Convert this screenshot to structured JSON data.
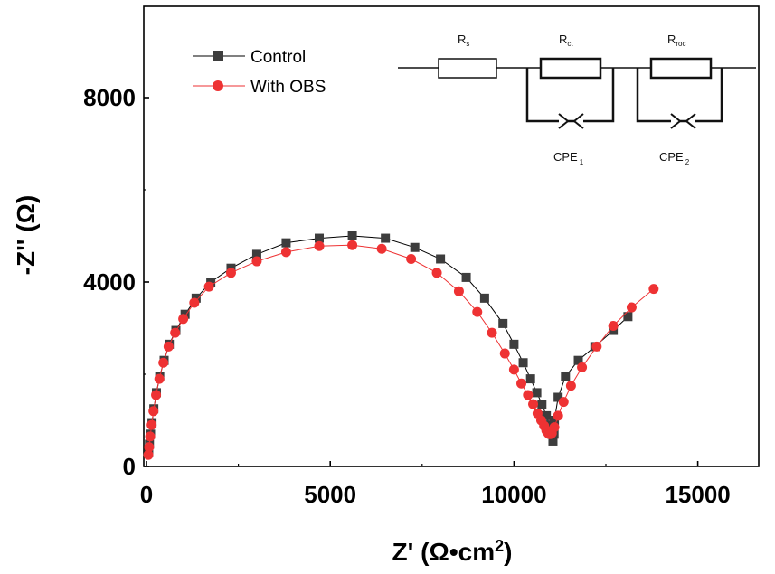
{
  "chart_data": {
    "type": "scatter",
    "title": "",
    "xlabel": "Z' (Ω•cm",
    "xlabel_sup": "2",
    "xlabel_end": ")",
    "ylabel": "-Z'' (Ω)",
    "xlim": [
      0,
      16800
    ],
    "ylim": [
      0,
      9800
    ],
    "xticks": [
      0,
      5000,
      10000,
      15000
    ],
    "yticks": [
      0,
      4000,
      8000
    ],
    "xtick_labels": [
      "0",
      "5000",
      "10000",
      "15000"
    ],
    "ytick_labels": [
      "0",
      "4000",
      "8000"
    ],
    "legend_position": "top-left",
    "series": [
      {
        "name": "Control",
        "color": "#3d3d3d",
        "line_color": "#000000",
        "marker": "square",
        "x": [
          60,
          80,
          110,
          150,
          200,
          270,
          360,
          480,
          620,
          800,
          1050,
          1350,
          1750,
          2300,
          3000,
          3800,
          4700,
          5600,
          6500,
          7300,
          8000,
          8700,
          9200,
          9700,
          10000,
          10250,
          10450,
          10620,
          10760,
          10880,
          10960,
          11020,
          11060,
          11090,
          11100,
          11200,
          11400,
          11750,
          12200,
          12700,
          13100
        ],
        "y": [
          300,
          480,
          700,
          950,
          1250,
          1600,
          1950,
          2300,
          2650,
          2950,
          3300,
          3650,
          4000,
          4300,
          4600,
          4850,
          4950,
          5000,
          4950,
          4750,
          4500,
          4100,
          3650,
          3100,
          2650,
          2250,
          1900,
          1600,
          1350,
          1100,
          900,
          700,
          550,
          700,
          1000,
          1500,
          1950,
          2300,
          2600,
          2950,
          3250
        ]
      },
      {
        "name": "With OBS",
        "color": "#ee3233",
        "line_color": "#ee3233",
        "marker": "circle",
        "x": [
          50,
          70,
          100,
          140,
          190,
          260,
          350,
          460,
          600,
          780,
          1000,
          1300,
          1700,
          2300,
          3000,
          3800,
          4700,
          5600,
          6400,
          7200,
          7900,
          8500,
          9000,
          9400,
          9750,
          10000,
          10200,
          10380,
          10520,
          10640,
          10740,
          10820,
          10880,
          10930,
          10980,
          11030,
          11100,
          11200,
          11350,
          11550,
          11850,
          12250,
          12700,
          13200,
          13800
        ],
        "y": [
          250,
          420,
          650,
          900,
          1200,
          1550,
          1900,
          2250,
          2600,
          2900,
          3200,
          3550,
          3900,
          4200,
          4450,
          4650,
          4780,
          4800,
          4720,
          4500,
          4200,
          3800,
          3350,
          2900,
          2450,
          2100,
          1800,
          1550,
          1350,
          1150,
          1000,
          880,
          780,
          720,
          700,
          720,
          850,
          1100,
          1400,
          1750,
          2150,
          2600,
          3050,
          3450,
          3850
        ]
      }
    ]
  },
  "circuit": {
    "resistors": [
      {
        "label": "R",
        "sub": "s"
      },
      {
        "label": "R",
        "sub": "ct"
      },
      {
        "label": "R",
        "sub": "roc"
      }
    ],
    "cpes": [
      {
        "label": "CPE",
        "sub": "1"
      },
      {
        "label": "CPE",
        "sub": "2"
      }
    ]
  }
}
